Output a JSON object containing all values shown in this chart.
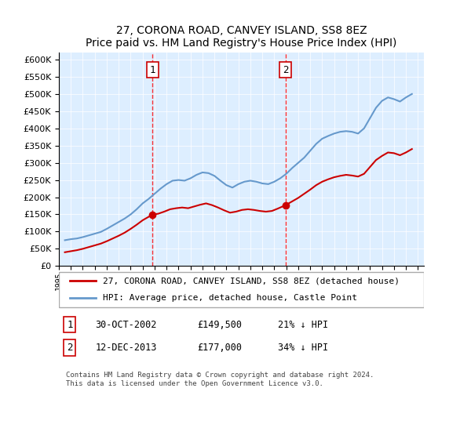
{
  "title1": "27, CORONA ROAD, CANVEY ISLAND, SS8 8EZ",
  "title2": "Price paid vs. HM Land Registry's House Price Index (HPI)",
  "ylabel_ticks": [
    "£0",
    "£50K",
    "£100K",
    "£150K",
    "£200K",
    "£250K",
    "£300K",
    "£350K",
    "£400K",
    "£450K",
    "£500K",
    "£550K",
    "£600K"
  ],
  "ylim": [
    0,
    620000
  ],
  "ytick_values": [
    0,
    50000,
    100000,
    150000,
    200000,
    250000,
    300000,
    350000,
    400000,
    450000,
    500000,
    550000,
    600000
  ],
  "legend_line1": "27, CORONA ROAD, CANVEY ISLAND, SS8 8EZ (detached house)",
  "legend_line2": "HPI: Average price, detached house, Castle Point",
  "sale1_label": "1",
  "sale1_date": "30-OCT-2002",
  "sale1_price": "£149,500",
  "sale1_pct": "21% ↓ HPI",
  "sale2_label": "2",
  "sale2_date": "12-DEC-2013",
  "sale2_price": "£177,000",
  "sale2_pct": "34% ↓ HPI",
  "footnote": "Contains HM Land Registry data © Crown copyright and database right 2024.\nThis data is licensed under the Open Government Licence v3.0.",
  "line_color_red": "#cc0000",
  "line_color_blue": "#6699cc",
  "background_color": "#ddeeff",
  "sale1_x": 2002.83,
  "sale1_y": 149500,
  "sale2_x": 2013.95,
  "sale2_y": 177000,
  "vline1_x": 2002.83,
  "vline2_x": 2013.95,
  "xmin": 1995,
  "xmax": 2025.5
}
